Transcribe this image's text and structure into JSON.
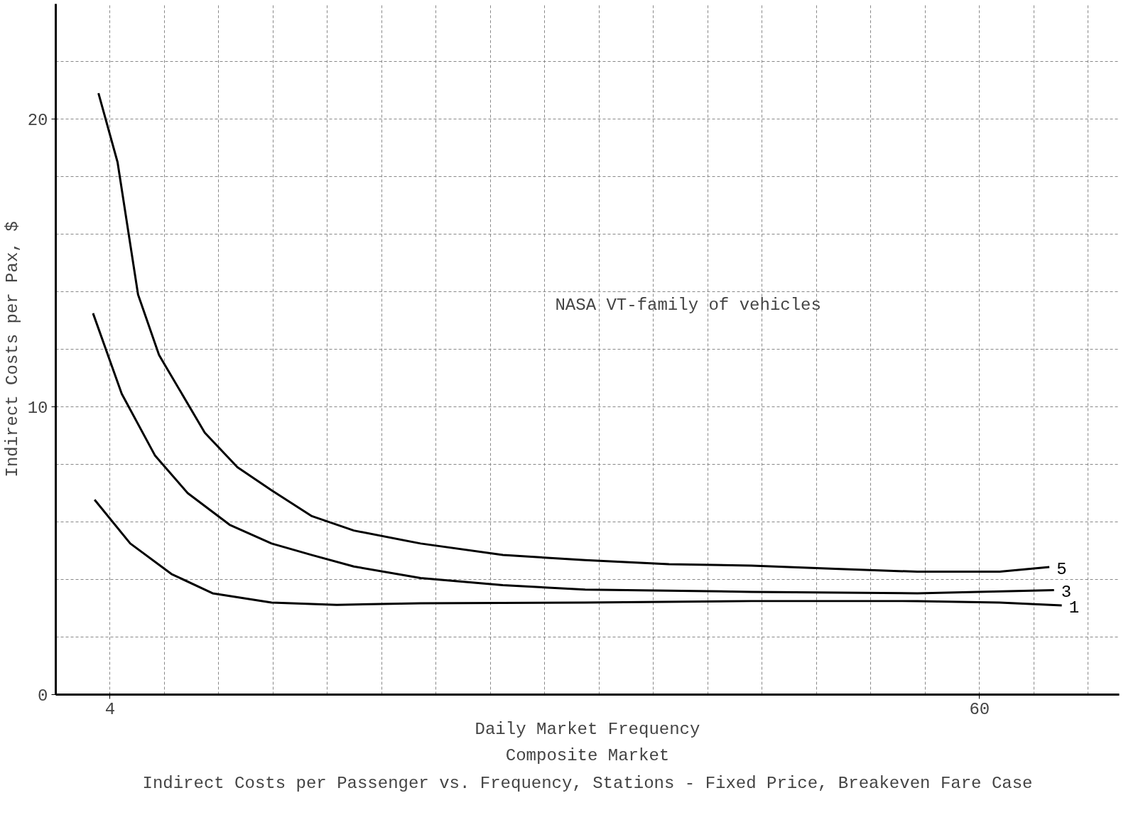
{
  "chart_data": {
    "type": "line",
    "title": "Indirect Costs per Passenger vs. Frequency, Stations - Fixed Price, Breakeven Fare Case",
    "subtitle": "Composite Market",
    "xlabel": "Daily Market Frequency",
    "ylabel": "Indirect Costs per Pax, $",
    "annotations": [
      "NASA VT-family of vehicles"
    ],
    "xlim": [
      0.5,
      69
    ],
    "ylim": [
      0,
      24
    ],
    "xticks": [
      4,
      60
    ],
    "yticks": [
      0,
      10,
      20
    ],
    "grid": true,
    "marker": "none",
    "line_style": "solid",
    "series": [
      {
        "name": "5",
        "color": "#000000",
        "x": [
          3.25,
          4.48,
          5.8,
          7.15,
          10.1,
          12.2,
          14.4,
          17.0,
          19.7,
          24.0,
          29.3,
          34.6,
          40.0,
          45.3,
          50.7,
          56.0,
          61.3,
          64.5
        ],
        "values": [
          20.9,
          18.5,
          13.9,
          11.8,
          9.1,
          7.9,
          7.1,
          6.2,
          5.7,
          5.25,
          4.85,
          4.67,
          4.53,
          4.48,
          4.37,
          4.27,
          4.27,
          4.43
        ]
      },
      {
        "name": "3",
        "color": "#000000",
        "x": [
          2.9,
          4.75,
          6.9,
          9.0,
          11.7,
          14.4,
          17.0,
          19.7,
          24.0,
          29.3,
          34.6,
          45.3,
          56.0,
          64.8
        ],
        "values": [
          13.25,
          10.45,
          8.3,
          7.0,
          5.9,
          5.25,
          4.85,
          4.45,
          4.05,
          3.8,
          3.65,
          3.57,
          3.52,
          3.63
        ]
      },
      {
        "name": "1",
        "color": "#000000",
        "x": [
          3.0,
          5.3,
          7.95,
          10.6,
          14.4,
          18.6,
          24.0,
          34.6,
          45.3,
          56.0,
          61.3,
          65.3
        ],
        "values": [
          6.77,
          5.25,
          4.19,
          3.52,
          3.2,
          3.12,
          3.17,
          3.2,
          3.25,
          3.25,
          3.2,
          3.1
        ]
      }
    ]
  }
}
